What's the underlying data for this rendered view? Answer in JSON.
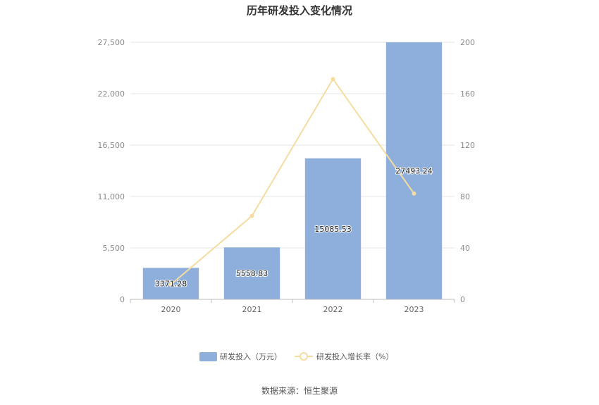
{
  "chart_data": {
    "type": "bar",
    "title": "历年研发投入变化情况",
    "categories": [
      "2020",
      "2021",
      "2022",
      "2023"
    ],
    "series": [
      {
        "name": "研发投入（万元）",
        "type": "bar",
        "axis": "left",
        "values": [
          3371.28,
          5558.83,
          15085.53,
          27493.24
        ],
        "labels": [
          "3371.28",
          "5558.83",
          "15085.53",
          "27493.24"
        ]
      },
      {
        "name": "研发投入增长率（%）",
        "type": "line",
        "axis": "right",
        "values": [
          11.5,
          64.9,
          171.4,
          82.3
        ]
      }
    ],
    "y_left": {
      "ylim": [
        0,
        27500
      ],
      "ticks": [
        "0",
        "5,500",
        "11,000",
        "16,500",
        "22,000",
        "27,500"
      ]
    },
    "y_right": {
      "ylim": [
        0,
        200
      ],
      "ticks": [
        "0",
        "40",
        "80",
        "120",
        "160",
        "200"
      ]
    },
    "grid": true,
    "legend_position": "bottom-center",
    "colors": {
      "bar": "#8eaedb",
      "line": "#f5dca0",
      "grid": "#e6e6e6",
      "axis": "#bbbbbb"
    }
  },
  "footer": {
    "source": "数据来源：恒生聚源"
  }
}
